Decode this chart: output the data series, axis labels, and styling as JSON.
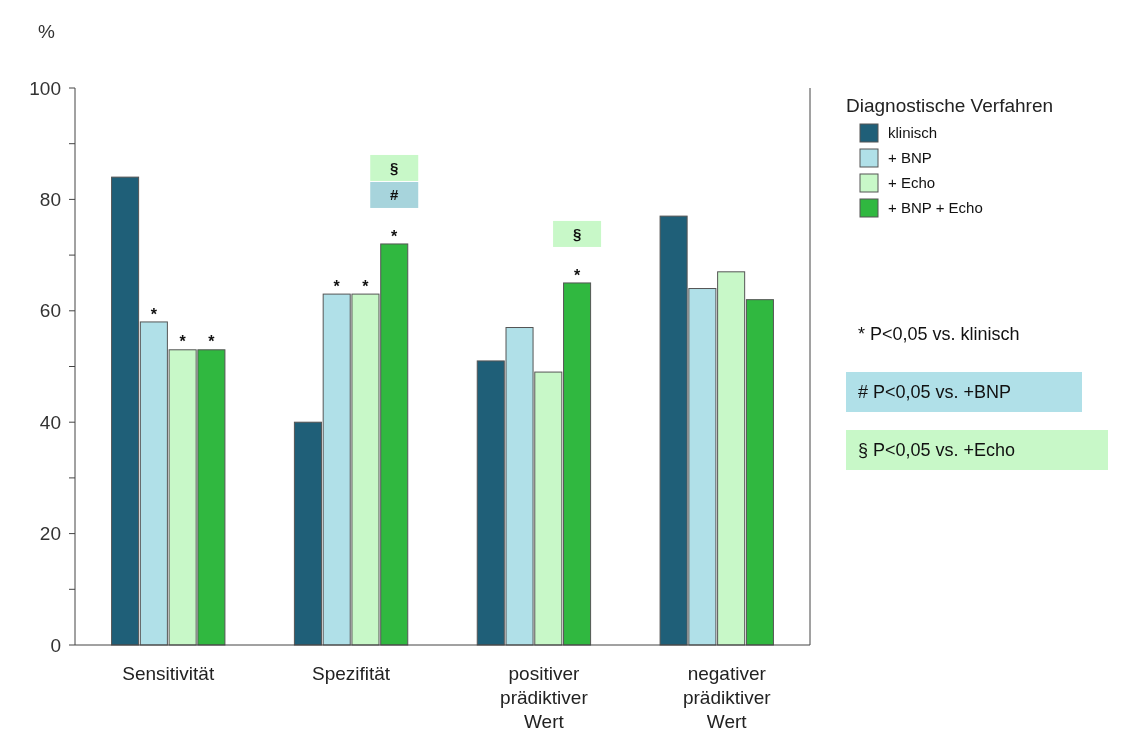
{
  "chart_data": {
    "type": "bar",
    "ylabel": "%",
    "legend_title": "Diagnostische Verfahren",
    "legend": "top right",
    "grid": false,
    "categories": [
      "Sensitivität",
      "Spezifität",
      "positiver prädiktiver Wert",
      "negativer prädiktiver Wert"
    ],
    "series": [
      {
        "name": "klinisch",
        "color": "#1f5f78",
        "values": [
          84,
          40,
          51,
          77
        ]
      },
      {
        "name": "+ BNP",
        "color": "#b0e0e8",
        "values": [
          58,
          63,
          57,
          64
        ]
      },
      {
        "name": "+ Echo",
        "color": "#c8f8c8",
        "values": [
          53,
          63,
          49,
          67
        ]
      },
      {
        "name": "+ BNP + Echo",
        "color": "#30b840",
        "values": [
          53,
          72,
          65,
          62
        ]
      }
    ],
    "ylim": [
      0,
      100
    ],
    "yticks": [
      0,
      {
        "value": 10,
        "label": null
      },
      20,
      {
        "value": 30,
        "label": null
      },
      40,
      {
        "value": 50,
        "label": null
      },
      60,
      {
        "value": 70,
        "label": null
      },
      80,
      {
        "value": 90,
        "label": null
      },
      100
    ],
    "annotations": [
      {
        "text": "*",
        "x": "Sensitivität",
        "y": 58
      },
      {
        "text": "*",
        "x": "Sensitivität",
        "y": 53
      },
      {
        "text": "*",
        "x": "Sensitivität",
        "y": 53
      },
      {
        "text": "*",
        "x": "Spezifität",
        "y": 63
      },
      {
        "text": "*",
        "x": "Spezifität",
        "y": 63
      },
      "*",
      "#",
      "§",
      "*",
      "§",
      "* P<0,05 vs. klinisch",
      "# P<0,05 vs. +BNP",
      "§ P<0,05 vs. +Echo"
    ]
  }
}
